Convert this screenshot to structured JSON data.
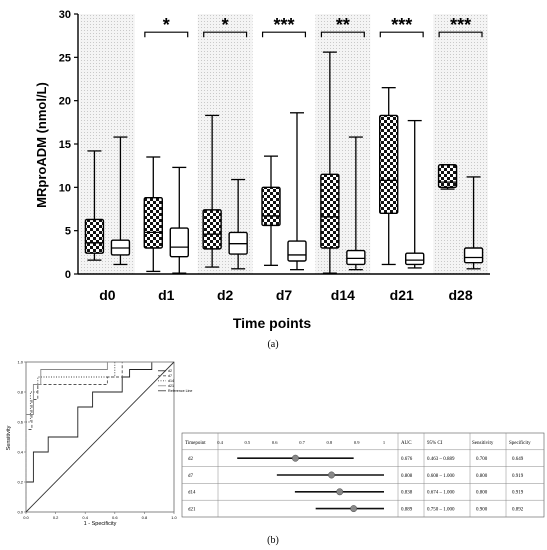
{
  "chart_data": [
    {
      "type": "box",
      "panel_label": "(a)",
      "ylabel": "MRproADM (nmol/L)",
      "xlabel": "Time points",
      "ylim": [
        0,
        30
      ],
      "yticks": [
        0,
        5,
        10,
        15,
        20,
        25,
        30
      ],
      "categories": [
        "d0",
        "d1",
        "d2",
        "d7",
        "d14",
        "d21",
        "d28"
      ],
      "shaded_columns": [
        "d0",
        "d2",
        "d14",
        "d28"
      ],
      "significance": [
        "",
        "*",
        "*",
        "***",
        "**",
        "***",
        "***"
      ],
      "series": [
        {
          "pattern": "checkered",
          "boxes": [
            {
              "min": 1.6,
              "q1": 2.4,
              "median": 3.6,
              "q3": 6.3,
              "max": 14.2
            },
            {
              "min": 0.3,
              "q1": 3.0,
              "median": 4.8,
              "q3": 8.8,
              "max": 13.5
            },
            {
              "min": 0.8,
              "q1": 2.9,
              "median": 4.6,
              "q3": 7.4,
              "max": 18.3
            },
            {
              "min": 1.0,
              "q1": 5.6,
              "median": 6.7,
              "q3": 10.0,
              "max": 13.6
            },
            {
              "min": 0.1,
              "q1": 3.0,
              "median": 6.6,
              "q3": 11.5,
              "max": 25.6
            },
            {
              "min": 1.1,
              "q1": 7.0,
              "median": 10.8,
              "q3": 18.3,
              "max": 21.5
            },
            {
              "min": 9.8,
              "q1": 10.0,
              "median": 10.6,
              "q3": 12.6,
              "max": 12.6
            }
          ]
        },
        {
          "pattern": "white",
          "boxes": [
            {
              "min": 1.1,
              "q1": 2.2,
              "median": 3.0,
              "q3": 3.9,
              "max": 15.8
            },
            {
              "min": 0.1,
              "q1": 2.0,
              "median": 3.1,
              "q3": 5.3,
              "max": 12.3
            },
            {
              "min": 0.6,
              "q1": 2.3,
              "median": 3.5,
              "q3": 4.8,
              "max": 10.9
            },
            {
              "min": 0.5,
              "q1": 1.5,
              "median": 2.2,
              "q3": 3.8,
              "max": 18.6
            },
            {
              "min": 0.5,
              "q1": 1.1,
              "median": 1.8,
              "q3": 2.7,
              "max": 15.8
            },
            {
              "min": 0.7,
              "q1": 1.1,
              "median": 1.6,
              "q3": 2.4,
              "max": 17.7
            },
            {
              "min": 0.6,
              "q1": 1.3,
              "median": 1.9,
              "q3": 3.0,
              "max": 11.2
            }
          ]
        }
      ]
    },
    {
      "type": "line",
      "panel_label": "(b)",
      "xlabel": "1 - Specificity",
      "ylabel": "Sensitivity",
      "xlim": [
        0,
        1
      ],
      "ylim": [
        0,
        1
      ],
      "xticks": [
        "0.0",
        "0.2",
        "0.4",
        "0.6",
        "0.8",
        "1.0"
      ],
      "yticks": [
        "0.0",
        "0.2",
        "0.4",
        "0.6",
        "0.8",
        "1.0"
      ],
      "legend": [
        "d2",
        "d7",
        "d14",
        "d21",
        "Reference Line"
      ],
      "series": [
        {
          "name": "d2",
          "style": "solid",
          "x": [
            0,
            0,
            0.05,
            0.05,
            0.15,
            0.15,
            0.35,
            0.35,
            0.45,
            0.45,
            0.65,
            0.65,
            0.7,
            0.7,
            0.85,
            0.85,
            1
          ],
          "y": [
            0,
            0.2,
            0.2,
            0.4,
            0.4,
            0.5,
            0.5,
            0.7,
            0.7,
            0.8,
            0.8,
            0.9,
            0.9,
            0.95,
            0.95,
            1,
            1
          ]
        },
        {
          "name": "d7",
          "style": "dashed",
          "x": [
            0,
            0,
            0.04,
            0.04,
            0.08,
            0.08,
            0.55,
            0.55,
            0.65,
            0.65,
            1
          ],
          "y": [
            0,
            0.55,
            0.55,
            0.75,
            0.75,
            0.85,
            0.85,
            0.9,
            0.9,
            1,
            1
          ]
        },
        {
          "name": "d14",
          "style": "dotted",
          "x": [
            0,
            0,
            0.03,
            0.03,
            0.08,
            0.08,
            0.6,
            0.6,
            1
          ],
          "y": [
            0,
            0.6,
            0.6,
            0.8,
            0.8,
            0.9,
            0.9,
            1,
            1
          ]
        },
        {
          "name": "d21",
          "style": "solid-gray",
          "x": [
            0,
            0,
            0.05,
            0.05,
            0.1,
            0.1,
            0.55,
            0.55,
            1
          ],
          "y": [
            0,
            0.65,
            0.65,
            0.85,
            0.85,
            0.95,
            0.95,
            1,
            1
          ]
        },
        {
          "name": "Reference Line",
          "style": "diagonal",
          "x": [
            0,
            1
          ],
          "y": [
            0,
            1
          ]
        }
      ]
    },
    {
      "type": "table",
      "headers": [
        "Timepoint",
        "",
        "AUC",
        "95% CI",
        "Sensitivity",
        "Specificity"
      ],
      "forest_axis": [
        "0.4",
        "0.5",
        "0.6",
        "0.7",
        "0.8",
        "0.9",
        "1"
      ],
      "forest_range": [
        0.4,
        1.0
      ],
      "rows": [
        {
          "timepoint": "d2",
          "auc": "0.676",
          "ci": "0.463 – 0.889",
          "sensitivity": "0.700",
          "specificity": "0.649",
          "point": 0.676,
          "lo": 0.463,
          "hi": 0.889
        },
        {
          "timepoint": "d7",
          "auc": "0.808",
          "ci": "0.608 – 1.000",
          "sensitivity": "0.800",
          "specificity": "0.919",
          "point": 0.808,
          "lo": 0.608,
          "hi": 1.0
        },
        {
          "timepoint": "d14",
          "auc": "0.838",
          "ci": "0.674 – 1.000",
          "sensitivity": "0.800",
          "specificity": "0.919",
          "point": 0.838,
          "lo": 0.674,
          "hi": 1.0
        },
        {
          "timepoint": "d21",
          "auc": "0.889",
          "ci": "0.750 – 1.000",
          "sensitivity": "0.900",
          "specificity": "0.892",
          "point": 0.889,
          "lo": 0.75,
          "hi": 1.0
        }
      ]
    }
  ]
}
